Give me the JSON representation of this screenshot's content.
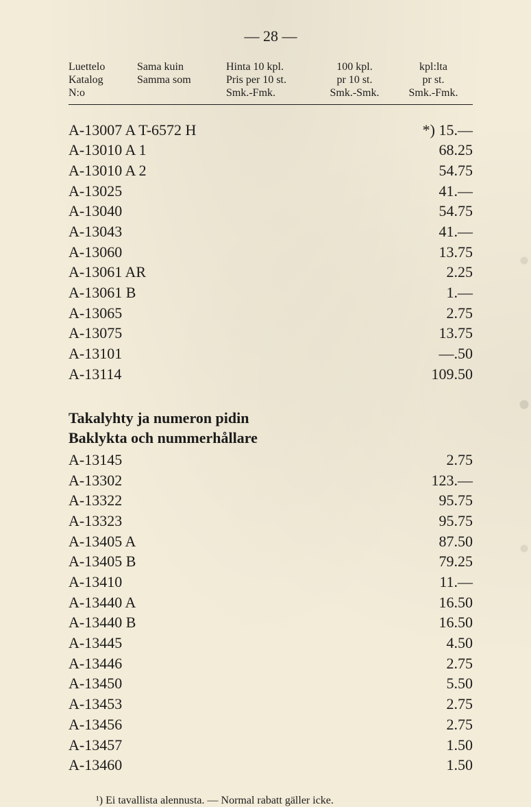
{
  "page_number": "— 28 —",
  "header": {
    "c1": [
      "Luettelo",
      "Katalog",
      "N:o"
    ],
    "c2": [
      "Sama kuin",
      "Samma som",
      ""
    ],
    "c3": [
      "Hinta 10 kpl.",
      "Pris per 10 st.",
      "Smk.-Fmk."
    ],
    "c4": [
      "100 kpl.",
      "pr 10 st.",
      "Smk.-Smk."
    ],
    "c5": [
      "kpl:lta",
      "pr st.",
      "Smk.-Fmk."
    ]
  },
  "section1": {
    "rows": [
      {
        "left": "A-13007 A T-6572 H",
        "right": "*) 15.—"
      },
      {
        "left": "A-13010 A 1",
        "right": "68.25"
      },
      {
        "left": "A-13010 A 2",
        "right": "54.75"
      },
      {
        "left": "A-13025",
        "right": "41.—"
      },
      {
        "left": "A-13040",
        "right": "54.75"
      },
      {
        "left": "A-13043",
        "right": "41.—"
      },
      {
        "left": "A-13060",
        "right": "13.75"
      },
      {
        "left": "A-13061 AR",
        "right": "2.25"
      },
      {
        "left": "A-13061 B",
        "right": "1.—"
      },
      {
        "left": "A-13065",
        "right": "2.75"
      },
      {
        "left": "A-13075",
        "right": "13.75"
      },
      {
        "left": "A-13101",
        "right": "—.50"
      },
      {
        "left": "A-13114",
        "right": "109.50"
      }
    ]
  },
  "section2": {
    "title_line1": "Takalyhty ja numeron pidin",
    "title_line2": "Baklykta och nummerhållare",
    "rows": [
      {
        "left": "A-13145",
        "right": "2.75"
      },
      {
        "left": "A-13302",
        "right": "123.—"
      },
      {
        "left": "A-13322",
        "right": "95.75"
      },
      {
        "left": "A-13323",
        "right": "95.75"
      },
      {
        "left": "A-13405 A",
        "right": "87.50"
      },
      {
        "left": "A-13405 B",
        "right": "79.25"
      },
      {
        "left": "A-13410",
        "right": "11.—"
      },
      {
        "left": "A-13440 A",
        "right": "16.50"
      },
      {
        "left": "A-13440 B",
        "right": "16.50"
      },
      {
        "left": "A-13445",
        "right": "4.50"
      },
      {
        "left": "A-13446",
        "right": "2.75"
      },
      {
        "left": "A-13450",
        "right": "5.50"
      },
      {
        "left": "A-13453",
        "right": "2.75"
      },
      {
        "left": "A-13456",
        "right": "2.75"
      },
      {
        "left": "A-13457",
        "right": "1.50"
      },
      {
        "left": "A-13460",
        "right": "1.50"
      }
    ]
  },
  "footnote": "¹) Ei tavallista alennusta. — Normal rabatt gäller icke."
}
